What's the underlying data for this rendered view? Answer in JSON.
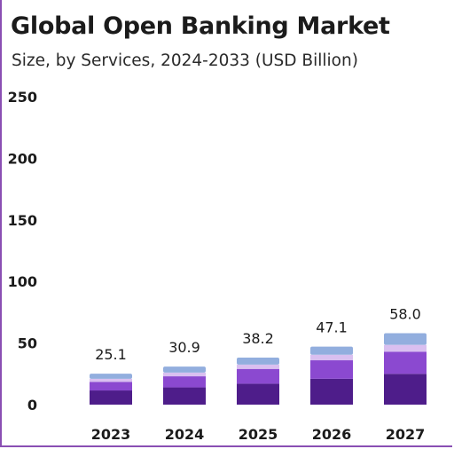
{
  "chart_data": {
    "type": "bar",
    "stacked": true,
    "title": "Global Open Banking Market",
    "subtitle": "Size, by Services, 2024-2033 (USD Billion)",
    "xlabel": "",
    "ylabel": "",
    "ylim": [
      0,
      250
    ],
    "yticks": [
      "0",
      "50",
      "100",
      "150",
      "200",
      "250"
    ],
    "categories": [
      "2023",
      "2024",
      "2025",
      "2026",
      "2027"
    ],
    "totals": [
      "25.1",
      "30.9",
      "38.2",
      "47.1",
      "58.0"
    ],
    "grid": false,
    "legend": "none",
    "series": [
      {
        "color": "#4e1d8a",
        "values": [
          11.5,
          14.0,
          17.0,
          21.0,
          25.0
        ]
      },
      {
        "color": "#8b49d0",
        "values": [
          7.0,
          9.0,
          12.0,
          15.0,
          18.0
        ]
      },
      {
        "color": "#d9bff0",
        "values": [
          2.5,
          3.0,
          3.5,
          4.5,
          5.5
        ]
      },
      {
        "color": "#92aede",
        "values": [
          4.1,
          4.9,
          5.7,
          6.6,
          9.5
        ]
      }
    ]
  }
}
